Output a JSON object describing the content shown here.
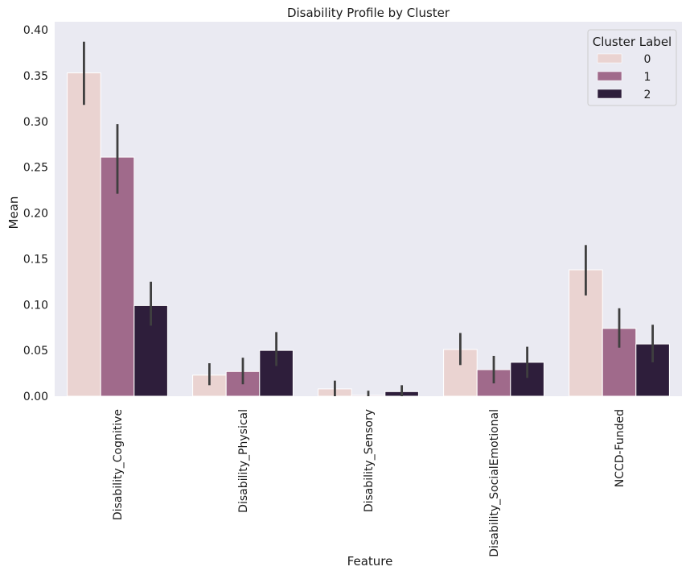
{
  "chart_data": {
    "type": "bar",
    "title": "Disability Profile by Cluster",
    "xlabel": "Feature",
    "ylabel": "Mean",
    "ylim": [
      0,
      0.4
    ],
    "y_ticks": [
      "0.00",
      "0.05",
      "0.10",
      "0.15",
      "0.20",
      "0.25",
      "0.30",
      "0.35",
      "0.40"
    ],
    "categories": [
      "Disability_Cognitive",
      "Disability_Physical",
      "Disability_Sensory",
      "Disability_SocialEmotional",
      "NCCD-Funded"
    ],
    "legend": {
      "title": "Cluster Label",
      "placement": "top-right"
    },
    "grid": false,
    "series": [
      {
        "name": "0",
        "color": "#ead3d1",
        "values": [
          0.353,
          0.023,
          0.008,
          0.051,
          0.138
        ],
        "error": [
          [
            0.318,
            0.387
          ],
          [
            0.012,
            0.036
          ],
          [
            0.0,
            0.017
          ],
          [
            0.034,
            0.069
          ],
          [
            0.11,
            0.165
          ]
        ]
      },
      {
        "name": "1",
        "color": "#a06a8b",
        "values": [
          0.261,
          0.027,
          0.001,
          0.029,
          0.074
        ],
        "error": [
          [
            0.221,
            0.297
          ],
          [
            0.013,
            0.042
          ],
          [
            0.0,
            0.006
          ],
          [
            0.014,
            0.044
          ],
          [
            0.053,
            0.096
          ]
        ]
      },
      {
        "name": "2",
        "color": "#2e1e3b",
        "values": [
          0.099,
          0.05,
          0.005,
          0.037,
          0.057
        ],
        "error": [
          [
            0.077,
            0.125
          ],
          [
            0.033,
            0.07
          ],
          [
            0.0,
            0.012
          ],
          [
            0.02,
            0.054
          ],
          [
            0.037,
            0.078
          ]
        ]
      }
    ]
  }
}
